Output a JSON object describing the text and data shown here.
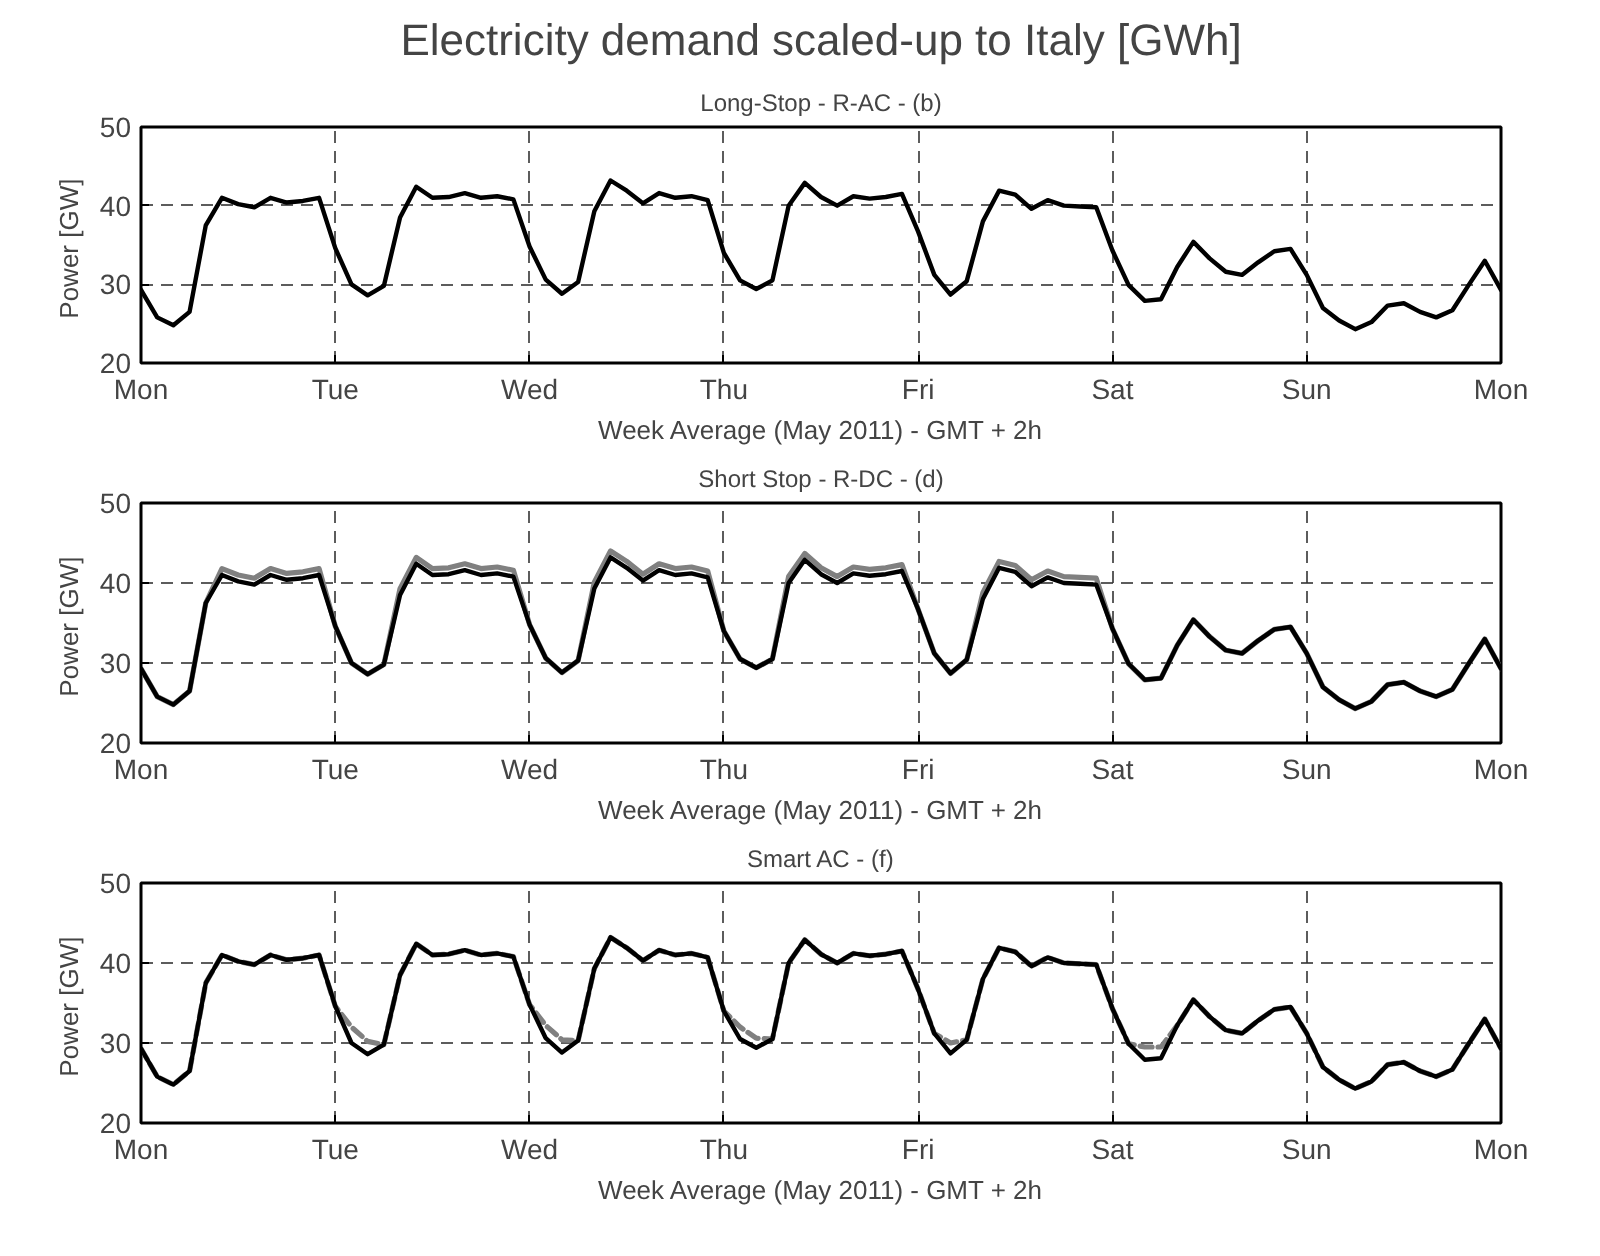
{
  "chart_data": [
    {
      "type": "line",
      "title": "Electricity demand scaled-up to Italy [GWh]",
      "subtitle": "Long-Stop - R-AC - (b)",
      "xlabel": "Week Average (May 2011) - GMT + 2h",
      "ylabel": "Power  [GW]",
      "categories": [
        "Mon",
        null,
        null,
        null,
        null,
        null,
        null,
        null,
        null,
        null,
        null,
        null,
        "Tue",
        null,
        null,
        null,
        null,
        null,
        null,
        null,
        null,
        null,
        null,
        null,
        "Wed",
        null,
        null,
        null,
        null,
        null,
        null,
        null,
        null,
        null,
        null,
        null,
        "Thu",
        null,
        null,
        null,
        null,
        null,
        null,
        null,
        null,
        null,
        null,
        null,
        "Fri",
        null,
        null,
        null,
        null,
        null,
        null,
        null,
        null,
        null,
        null,
        null,
        "Sat",
        null,
        null,
        null,
        null,
        null,
        null,
        null,
        null,
        null,
        null,
        null,
        "Sun",
        null,
        null,
        null,
        null,
        null,
        null,
        null,
        null,
        null,
        null,
        null,
        "Mon"
      ],
      "series": [
        {
          "color": "#000000",
          "line_style": "solid",
          "values": [
            29.3,
            25.8,
            24.8,
            26.5,
            37.5,
            41.0,
            40.2,
            39.8,
            41.0,
            40.4,
            40.6,
            41.0,
            34.6,
            30.0,
            28.6,
            29.8,
            38.5,
            42.4,
            41.0,
            41.1,
            41.6,
            41.0,
            41.2,
            40.8,
            34.8,
            30.6,
            28.8,
            30.3,
            39.3,
            43.2,
            41.9,
            40.3,
            41.6,
            41.0,
            41.2,
            40.7,
            34.0,
            30.5,
            29.4,
            30.5,
            40.0,
            42.9,
            41.1,
            40.0,
            41.2,
            40.9,
            41.1,
            41.5,
            36.7,
            31.2,
            28.7,
            30.4,
            38.0,
            41.9,
            41.4,
            39.6,
            40.7,
            40.0,
            39.9,
            39.8,
            34.3,
            29.9,
            27.9,
            28.1,
            32.2,
            35.4,
            33.3,
            31.6,
            31.2,
            32.8,
            34.2,
            34.5,
            31.2,
            27.0,
            25.4,
            24.3,
            25.2,
            27.3,
            27.6,
            26.5,
            25.8,
            26.7,
            29.9,
            33.0,
            29.3
          ]
        }
      ],
      "ylim": [
        20,
        50
      ],
      "yticks": [
        20,
        30,
        40,
        50
      ],
      "grid": true
    },
    {
      "type": "line",
      "title": "Short Stop - R-DC - (d)",
      "xlabel": "Week Average (May 2011) - GMT + 2h",
      "ylabel": "Power  [GW]",
      "categories": [
        "Mon",
        null,
        null,
        null,
        null,
        null,
        null,
        null,
        null,
        null,
        null,
        null,
        "Tue",
        null,
        null,
        null,
        null,
        null,
        null,
        null,
        null,
        null,
        null,
        null,
        "Wed",
        null,
        null,
        null,
        null,
        null,
        null,
        null,
        null,
        null,
        null,
        null,
        "Thu",
        null,
        null,
        null,
        null,
        null,
        null,
        null,
        null,
        null,
        null,
        null,
        "Fri",
        null,
        null,
        null,
        null,
        null,
        null,
        null,
        null,
        null,
        null,
        null,
        "Sat",
        null,
        null,
        null,
        null,
        null,
        null,
        null,
        null,
        null,
        null,
        null,
        "Sun",
        null,
        null,
        null,
        null,
        null,
        null,
        null,
        null,
        null,
        null,
        null,
        "Mon"
      ],
      "series": [
        {
          "color": "#808080",
          "line_style": "solid",
          "values": [
            29.3,
            25.8,
            24.8,
            26.5,
            37.5,
            41.8,
            41.0,
            40.6,
            41.8,
            41.2,
            41.4,
            41.8,
            34.6,
            30.0,
            28.6,
            29.8,
            39.3,
            43.2,
            41.8,
            41.9,
            42.4,
            41.8,
            42.0,
            41.6,
            34.8,
            30.6,
            28.8,
            30.3,
            40.1,
            44.0,
            42.7,
            41.1,
            42.4,
            41.8,
            42.0,
            41.5,
            34.0,
            30.5,
            29.4,
            30.5,
            40.8,
            43.7,
            41.9,
            40.8,
            42.0,
            41.7,
            41.9,
            42.3,
            36.7,
            31.2,
            28.7,
            30.4,
            38.8,
            42.7,
            42.2,
            40.4,
            41.5,
            40.8,
            40.7,
            40.6,
            34.3,
            29.9,
            27.9,
            28.1,
            32.2,
            35.4,
            33.3,
            31.6,
            31.2,
            32.8,
            34.2,
            34.5,
            31.2,
            27.0,
            25.4,
            24.3,
            25.2,
            27.3,
            27.6,
            26.5,
            25.8,
            26.7,
            29.9,
            33.0,
            29.3
          ]
        },
        {
          "color": "#000000",
          "line_style": "solid",
          "values": [
            29.3,
            25.8,
            24.8,
            26.5,
            37.5,
            41.0,
            40.2,
            39.8,
            41.0,
            40.4,
            40.6,
            41.0,
            34.6,
            30.0,
            28.6,
            29.8,
            38.5,
            42.4,
            41.0,
            41.1,
            41.6,
            41.0,
            41.2,
            40.8,
            34.8,
            30.6,
            28.8,
            30.3,
            39.3,
            43.2,
            41.9,
            40.3,
            41.6,
            41.0,
            41.2,
            40.7,
            34.0,
            30.5,
            29.4,
            30.5,
            40.0,
            42.9,
            41.1,
            40.0,
            41.2,
            40.9,
            41.1,
            41.5,
            36.7,
            31.2,
            28.7,
            30.4,
            38.0,
            41.9,
            41.4,
            39.6,
            40.7,
            40.0,
            39.9,
            39.8,
            34.3,
            29.9,
            27.9,
            28.1,
            32.2,
            35.4,
            33.3,
            31.6,
            31.2,
            32.8,
            34.2,
            34.5,
            31.2,
            27.0,
            25.4,
            24.3,
            25.2,
            27.3,
            27.6,
            26.5,
            25.8,
            26.7,
            29.9,
            33.0,
            29.3
          ]
        }
      ],
      "ylim": [
        20,
        50
      ],
      "yticks": [
        20,
        30,
        40,
        50
      ],
      "grid": true
    },
    {
      "type": "line",
      "title": "Smart AC - (f)",
      "xlabel": "Week Average (May 2011) - GMT + 2h",
      "ylabel": "Power  [GW]",
      "categories": [
        "Mon",
        null,
        null,
        null,
        null,
        null,
        null,
        null,
        null,
        null,
        null,
        null,
        "Tue",
        null,
        null,
        null,
        null,
        null,
        null,
        null,
        null,
        null,
        null,
        null,
        "Wed",
        null,
        null,
        null,
        null,
        null,
        null,
        null,
        null,
        null,
        null,
        null,
        "Thu",
        null,
        null,
        null,
        null,
        null,
        null,
        null,
        null,
        null,
        null,
        null,
        "Fri",
        null,
        null,
        null,
        null,
        null,
        null,
        null,
        null,
        null,
        null,
        null,
        "Sat",
        null,
        null,
        null,
        null,
        null,
        null,
        null,
        null,
        null,
        null,
        null,
        "Sun",
        null,
        null,
        null,
        null,
        null,
        null,
        null,
        null,
        null,
        null,
        null,
        "Mon"
      ],
      "series": [
        {
          "color": "#808080",
          "line_style": "dashed",
          "values": [
            29.3,
            25.8,
            24.8,
            26.5,
            37.5,
            41.0,
            40.2,
            39.8,
            41.0,
            40.4,
            40.6,
            41.0,
            34.6,
            32.0,
            30.2,
            29.8,
            38.5,
            42.4,
            41.0,
            41.1,
            41.6,
            41.0,
            41.2,
            40.8,
            34.8,
            32.2,
            30.4,
            30.3,
            39.3,
            43.2,
            41.9,
            40.3,
            41.6,
            41.0,
            41.2,
            40.7,
            34.0,
            32.0,
            30.6,
            30.5,
            40.0,
            42.9,
            41.1,
            40.0,
            41.2,
            40.9,
            41.1,
            41.5,
            36.7,
            31.2,
            30.0,
            30.4,
            38.0,
            41.9,
            41.4,
            39.6,
            40.7,
            40.0,
            39.9,
            39.8,
            34.3,
            29.9,
            29.5,
            29.5,
            32.2,
            35.4,
            33.3,
            31.6,
            31.2,
            32.8,
            34.2,
            34.5,
            31.2,
            27.0,
            25.4,
            24.3,
            25.2,
            27.3,
            27.6,
            26.5,
            25.8,
            26.7,
            29.9,
            33.0,
            29.3
          ]
        },
        {
          "color": "#000000",
          "line_style": "solid",
          "values": [
            29.3,
            25.8,
            24.8,
            26.5,
            37.5,
            41.0,
            40.2,
            39.8,
            41.0,
            40.4,
            40.6,
            41.0,
            34.6,
            30.0,
            28.6,
            29.8,
            38.5,
            42.4,
            41.0,
            41.1,
            41.6,
            41.0,
            41.2,
            40.8,
            34.8,
            30.6,
            28.8,
            30.3,
            39.3,
            43.2,
            41.9,
            40.3,
            41.6,
            41.0,
            41.2,
            40.7,
            34.0,
            30.5,
            29.4,
            30.5,
            40.0,
            42.9,
            41.1,
            40.0,
            41.2,
            40.9,
            41.1,
            41.5,
            36.7,
            31.2,
            28.7,
            30.4,
            38.0,
            41.9,
            41.4,
            39.6,
            40.7,
            40.0,
            39.9,
            39.8,
            34.3,
            29.9,
            27.9,
            28.1,
            32.2,
            35.4,
            33.3,
            31.6,
            31.2,
            32.8,
            34.2,
            34.5,
            31.2,
            27.0,
            25.4,
            24.3,
            25.2,
            27.3,
            27.6,
            26.5,
            25.8,
            26.7,
            29.9,
            33.0,
            29.3
          ]
        }
      ],
      "ylim": [
        20,
        50
      ],
      "yticks": [
        20,
        30,
        40,
        50
      ],
      "grid": true
    }
  ]
}
